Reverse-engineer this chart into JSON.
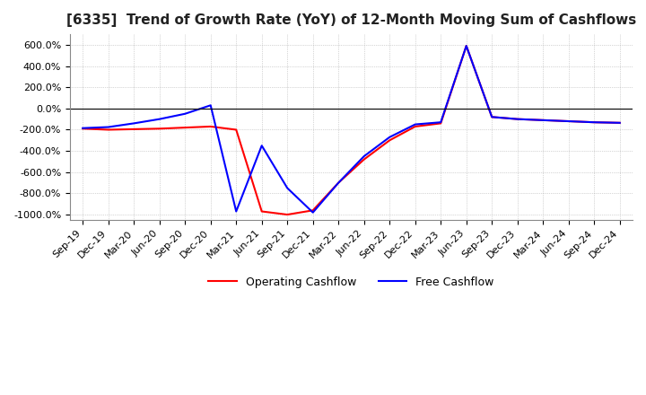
{
  "title": "[6335]  Trend of Growth Rate (YoY) of 12-Month Moving Sum of Cashflows",
  "ylim": [
    -1050,
    700
  ],
  "yticks": [
    -1000,
    -800,
    -600,
    -400,
    -200,
    0,
    200,
    400,
    600
  ],
  "ytick_labels": [
    "-1000.0%",
    "-800.0%",
    "-600.0%",
    "-400.0%",
    "-200.0%",
    "0.0%",
    "200.0%",
    "400.0%",
    "600.0%"
  ],
  "x_labels": [
    "Sep-19",
    "Dec-19",
    "Mar-20",
    "Jun-20",
    "Sep-20",
    "Dec-20",
    "Mar-21",
    "Jun-21",
    "Sep-21",
    "Dec-21",
    "Mar-22",
    "Jun-22",
    "Sep-22",
    "Dec-22",
    "Mar-23",
    "Jun-23",
    "Sep-23",
    "Dec-23",
    "Mar-24",
    "Jun-24",
    "Sep-24",
    "Dec-24"
  ],
  "operating_cashflow": [
    -190,
    -200,
    -195,
    -190,
    -180,
    -170,
    -200,
    -970,
    -1000,
    -960,
    -700,
    -480,
    -300,
    -170,
    -140,
    590,
    -80,
    -100,
    -110,
    -120,
    -130,
    -135
  ],
  "free_cashflow": [
    -185,
    -175,
    -140,
    -100,
    -50,
    30,
    -970,
    -350,
    -750,
    -980,
    -700,
    -450,
    -270,
    -150,
    -130,
    590,
    -80,
    -100,
    -110,
    -120,
    -130,
    -135
  ],
  "op_color": "#ff0000",
  "free_color": "#0000ff",
  "legend_labels": [
    "Operating Cashflow",
    "Free Cashflow"
  ],
  "title_fontsize": 11,
  "tick_fontsize": 8,
  "background_color": "#ffffff",
  "grid_color": "#b0b0b0"
}
